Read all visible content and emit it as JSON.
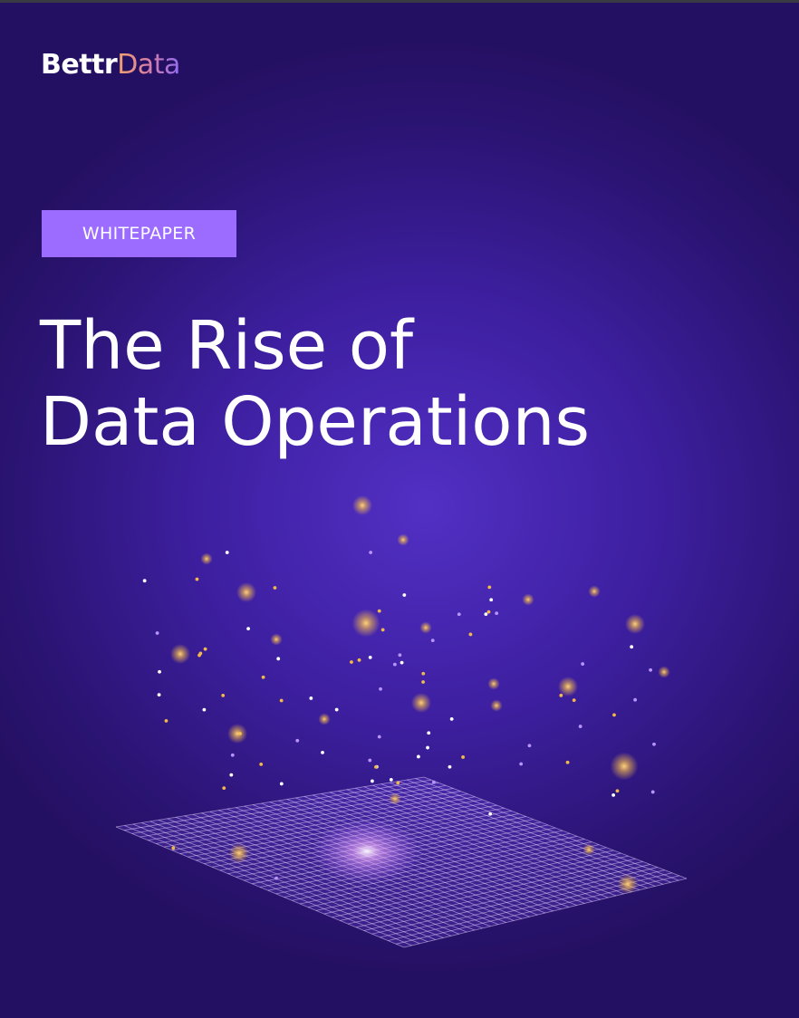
{
  "brand": {
    "logo_part1": "Bettr",
    "logo_part2": "Data"
  },
  "badge": {
    "label": "WHITEPAPER"
  },
  "title": {
    "line1": "The Rise of",
    "line2": "Data Operations"
  },
  "colors": {
    "background": "#3d1fa0",
    "badge": "#9b6cff",
    "gold_particle": "#f2b84b",
    "violet_particle": "#a67cff",
    "grid_line": "#e6dcff"
  },
  "illustration": {
    "icon": "data-grid-particles-illustration"
  }
}
